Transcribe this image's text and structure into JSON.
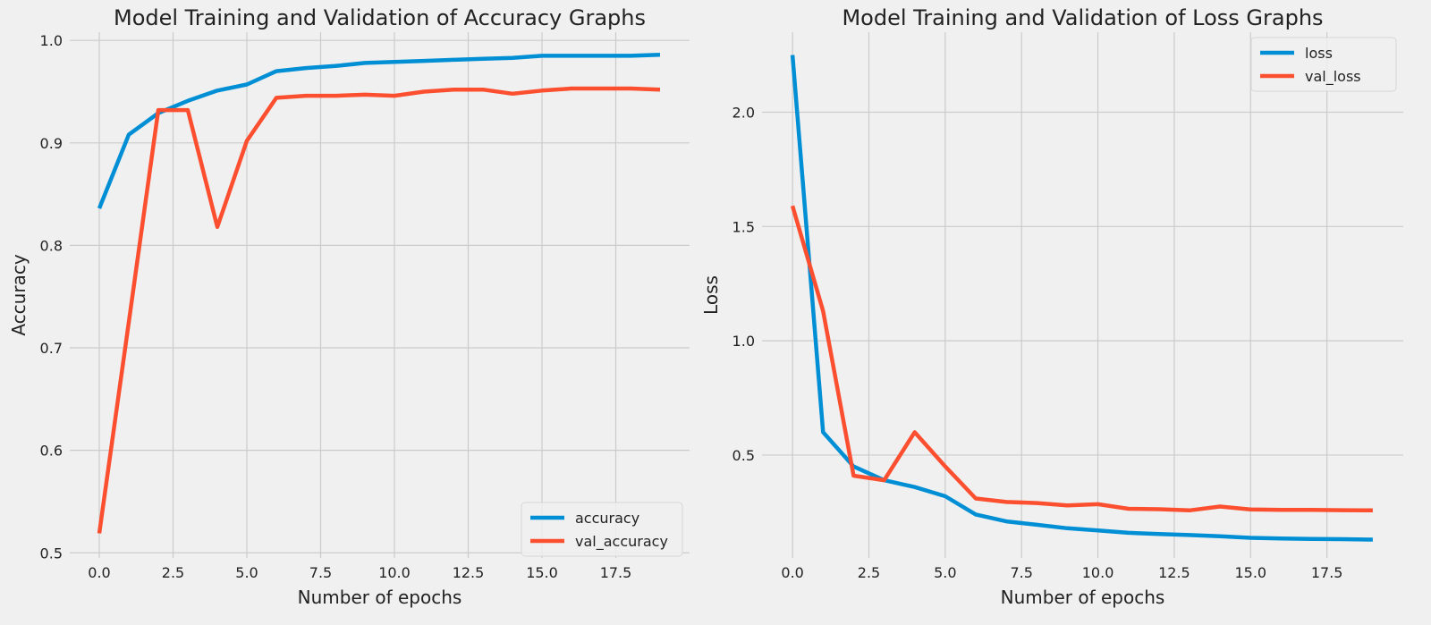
{
  "colors": {
    "background": "#f0f0f0",
    "grid": "#cbcbcb",
    "series_blue": "#008fd5",
    "series_red": "#fc4f30"
  },
  "chart_data": [
    {
      "type": "line",
      "title": "Model Training and Validation of Accuracy Graphs",
      "xlabel": "Number of epochs",
      "ylabel": "Accuracy",
      "xlim": [
        -1,
        20
      ],
      "ylim": [
        0.495,
        1.008
      ],
      "x_ticks": [
        0.0,
        2.5,
        5.0,
        7.5,
        10.0,
        12.5,
        15.0,
        17.5
      ],
      "x_tick_labels": [
        "0.0",
        "2.5",
        "5.0",
        "7.5",
        "10.0",
        "12.5",
        "15.0",
        "17.5"
      ],
      "y_ticks": [
        0.5,
        0.6,
        0.7,
        0.8,
        0.9,
        1.0
      ],
      "y_tick_labels": [
        "0.5",
        "0.6",
        "0.7",
        "0.8",
        "0.9",
        "1.0"
      ],
      "grid": true,
      "legend_position": "lower-right",
      "x": [
        0,
        1,
        2,
        3,
        4,
        5,
        6,
        7,
        8,
        9,
        10,
        11,
        12,
        13,
        14,
        15,
        16,
        17,
        18,
        19
      ],
      "series": [
        {
          "name": "accuracy",
          "color": "#008fd5",
          "values": [
            0.836,
            0.908,
            0.929,
            0.941,
            0.951,
            0.957,
            0.97,
            0.973,
            0.975,
            0.978,
            0.979,
            0.98,
            0.981,
            0.982,
            0.983,
            0.985,
            0.985,
            0.985,
            0.985,
            0.986
          ]
        },
        {
          "name": "val_accuracy",
          "color": "#fc4f30",
          "values": [
            0.519,
            0.725,
            0.932,
            0.932,
            0.818,
            0.902,
            0.944,
            0.946,
            0.946,
            0.947,
            0.946,
            0.95,
            0.952,
            0.952,
            0.948,
            0.951,
            0.953,
            0.953,
            0.953,
            0.952
          ]
        }
      ]
    },
    {
      "type": "line",
      "title": "Model Training and Validation of Loss Graphs",
      "xlabel": "Number of epochs",
      "ylabel": "Loss",
      "xlim": [
        -1,
        20
      ],
      "ylim": [
        0.05,
        2.35
      ],
      "x_ticks": [
        0.0,
        2.5,
        5.0,
        7.5,
        10.0,
        12.5,
        15.0,
        17.5
      ],
      "x_tick_labels": [
        "0.0",
        "2.5",
        "5.0",
        "7.5",
        "10.0",
        "12.5",
        "15.0",
        "17.5"
      ],
      "y_ticks": [
        0.5,
        1.0,
        1.5,
        2.0
      ],
      "y_tick_labels": [
        "0.5",
        "1.0",
        "1.5",
        "2.0"
      ],
      "grid": true,
      "legend_position": "upper-right",
      "x": [
        0,
        1,
        2,
        3,
        4,
        5,
        6,
        7,
        8,
        9,
        10,
        11,
        12,
        13,
        14,
        15,
        16,
        17,
        18,
        19
      ],
      "series": [
        {
          "name": "loss",
          "color": "#008fd5",
          "values": [
            2.25,
            0.6,
            0.45,
            0.39,
            0.36,
            0.32,
            0.24,
            0.21,
            0.195,
            0.18,
            0.17,
            0.16,
            0.155,
            0.15,
            0.145,
            0.138,
            0.135,
            0.133,
            0.132,
            0.13
          ]
        },
        {
          "name": "val_loss",
          "color": "#fc4f30",
          "values": [
            1.59,
            1.13,
            0.41,
            0.39,
            0.6,
            0.45,
            0.31,
            0.295,
            0.29,
            0.28,
            0.285,
            0.265,
            0.263,
            0.258,
            0.275,
            0.262,
            0.26,
            0.26,
            0.259,
            0.258
          ]
        }
      ]
    }
  ]
}
